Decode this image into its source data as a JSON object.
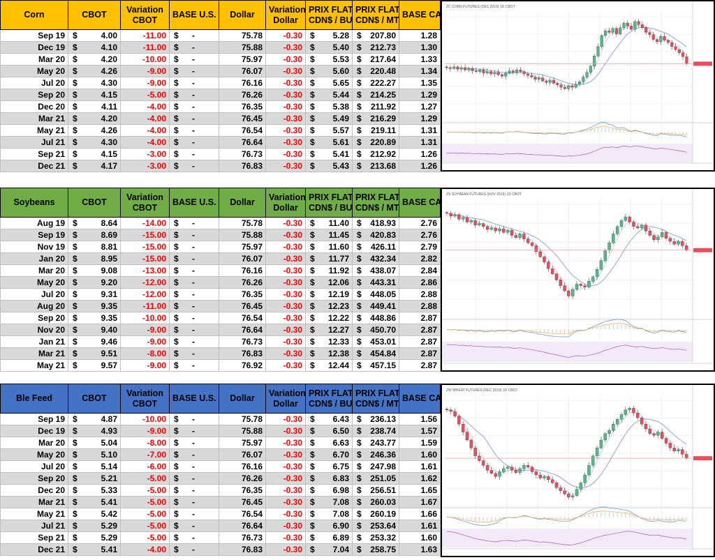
{
  "tables": [
    {
      "id": "corn",
      "header_color": "#ffc000",
      "headers": [
        "Corn",
        "CBOT",
        "Variation\nCBOT",
        "BASE U.S.",
        "Dollar",
        "Variation\nDollar",
        "PRIX FLAT\nCDN$ / BU.",
        "PRIX FLAT\nCDN$ / MT",
        "BASE CAD"
      ],
      "rows": [
        [
          "Sep 19",
          "4.00",
          "-11.00",
          "-",
          "75.78",
          "-0.30",
          "5.28",
          "207.80",
          "1.28"
        ],
        [
          "Dec 19",
          "4.10",
          "-11.00",
          "-",
          "75.88",
          "-0.30",
          "5.40",
          "212.73",
          "1.30"
        ],
        [
          "Mar 20",
          "4.20",
          "-10.00",
          "-",
          "75.97",
          "-0.30",
          "5.53",
          "217.64",
          "1.33"
        ],
        [
          "May 20",
          "4.26",
          "-9.00",
          "-",
          "76.07",
          "-0.30",
          "5.60",
          "220.48",
          "1.34"
        ],
        [
          "Jul 20",
          "4.30",
          "-9.00",
          "-",
          "76.16",
          "-0.30",
          "5.65",
          "222.27",
          "1.35"
        ],
        [
          "Sep 20",
          "4.15",
          "-5.00",
          "-",
          "76.26",
          "-0.30",
          "5.44",
          "214.25",
          "1.29"
        ],
        [
          "Dec 20",
          "4.11",
          "-4.00",
          "-",
          "76.35",
          "-0.30",
          "5.38",
          "211.92",
          "1.27"
        ],
        [
          "Mar 21",
          "4.20",
          "-4.00",
          "-",
          "76.45",
          "-0.30",
          "5.49",
          "216.29",
          "1.29"
        ],
        [
          "May 21",
          "4.26",
          "-4.00",
          "-",
          "76.54",
          "-0.30",
          "5.57",
          "219.11",
          "1.31"
        ],
        [
          "Jul 21",
          "4.30",
          "-4.00",
          "-",
          "76.64",
          "-0.30",
          "5.61",
          "220.89",
          "1.31"
        ],
        [
          "Sep 21",
          "4.15",
          "-3.00",
          "-",
          "76.73",
          "-0.30",
          "5.41",
          "212.92",
          "1.26"
        ],
        [
          "Dec 21",
          "4.17",
          "-3.00",
          "-",
          "76.83",
          "-0.30",
          "5.43",
          "213.68",
          "1.26"
        ]
      ]
    },
    {
      "id": "soybeans",
      "header_color": "#70ad47",
      "headers": [
        "Soybeans",
        "CBOT",
        "Variation\nCBOT",
        "BASE U.S.",
        "Dollar",
        "Variation\nDollar",
        "PRIX FLAT\nCDN$ / BU.",
        "PRIX FLAT\nCDN$ / MT",
        "BASE CAD"
      ],
      "rows": [
        [
          "Aug 19",
          "8.64",
          "-14.00",
          "-",
          "75.78",
          "-0.30",
          "11.40",
          "418.93",
          "2.76"
        ],
        [
          "Sep 19",
          "8.69",
          "-15.00",
          "-",
          "75.88",
          "-0.30",
          "11.45",
          "420.83",
          "2.76"
        ],
        [
          "Nov 19",
          "8.81",
          "-15.00",
          "-",
          "75.97",
          "-0.30",
          "11.60",
          "426.11",
          "2.79"
        ],
        [
          "Jan 20",
          "8.95",
          "-15.00",
          "-",
          "76.07",
          "-0.30",
          "11.77",
          "432.34",
          "2.82"
        ],
        [
          "Mar 20",
          "9.08",
          "-13.00",
          "-",
          "76.16",
          "-0.30",
          "11.92",
          "438.07",
          "2.84"
        ],
        [
          "May 20",
          "9.20",
          "-12.00",
          "-",
          "76.26",
          "-0.30",
          "12.06",
          "443.31",
          "2.86"
        ],
        [
          "Jul 20",
          "9.31",
          "-12.00",
          "-",
          "76.35",
          "-0.30",
          "12.19",
          "448.05",
          "2.88"
        ],
        [
          "Aug 20",
          "9.35",
          "-11.00",
          "-",
          "76.45",
          "-0.30",
          "12.23",
          "449.41",
          "2.88"
        ],
        [
          "Sep 20",
          "9.35",
          "-10.00",
          "-",
          "76.54",
          "-0.30",
          "12.22",
          "448.86",
          "2.87"
        ],
        [
          "Nov 20",
          "9.40",
          "-9.00",
          "-",
          "76.64",
          "-0.30",
          "12.27",
          "450.70",
          "2.87"
        ],
        [
          "Jan 21",
          "9.46",
          "-9.00",
          "-",
          "76.73",
          "-0.30",
          "12.33",
          "453.01",
          "2.87"
        ],
        [
          "Mar 21",
          "9.51",
          "-8.00",
          "-",
          "76.83",
          "-0.30",
          "12.38",
          "454.84",
          "2.87"
        ],
        [
          "May 21",
          "9.57",
          "-9.00",
          "-",
          "76.92",
          "-0.30",
          "12.44",
          "457.15",
          "2.87"
        ]
      ]
    },
    {
      "id": "blefeed",
      "header_color": "#4472c4",
      "headers": [
        "Ble Feed",
        "CBOT",
        "Variation\nCBOT",
        "BASE U.S.",
        "Dollar",
        "Variation\nDollar",
        "PRIX FLAT\nCDN$ / BU.",
        "PRIX FLAT\nCDN$ / MT",
        "BASE CAD"
      ],
      "rows": [
        [
          "Sep 19",
          "4.87",
          "-10.00",
          "-",
          "75.78",
          "-0.30",
          "6.43",
          "236.13",
          "1.56"
        ],
        [
          "Dec 19",
          "4.93",
          "-9.00",
          "-",
          "75.88",
          "-0.30",
          "6.50",
          "238.74",
          "1.57"
        ],
        [
          "Mar 20",
          "5.04",
          "-8.00",
          "-",
          "75.97",
          "-0.30",
          "6.63",
          "243.77",
          "1.59"
        ],
        [
          "May 20",
          "5.10",
          "-7.00",
          "-",
          "76.07",
          "-0.30",
          "6.70",
          "246.36",
          "1.60"
        ],
        [
          "Jul 20",
          "5.14",
          "-6.00",
          "-",
          "76.16",
          "-0.30",
          "6.75",
          "247.98",
          "1.61"
        ],
        [
          "Sep 20",
          "5.21",
          "-5.00",
          "-",
          "76.26",
          "-0.30",
          "6.83",
          "251.05",
          "1.62"
        ],
        [
          "Dec 20",
          "5.33",
          "-5.00",
          "-",
          "76.35",
          "-0.30",
          "6.98",
          "256.51",
          "1.65"
        ],
        [
          "Mar 21",
          "5.41",
          "-5.00",
          "-",
          "76.45",
          "-0.30",
          "7.08",
          "260.03",
          "1.67"
        ],
        [
          "May 21",
          "5.42",
          "-5.00",
          "-",
          "76.54",
          "-0.30",
          "7.08",
          "260.19",
          "1.66"
        ],
        [
          "Jul 21",
          "5.29",
          "-5.00",
          "-",
          "76.64",
          "-0.30",
          "6.90",
          "253.64",
          "1.61"
        ],
        [
          "Sep 21",
          "5.29",
          "-5.00",
          "-",
          "76.73",
          "-0.30",
          "6.89",
          "253.32",
          "1.60"
        ],
        [
          "Dec 21",
          "5.41",
          "-4.00",
          "-",
          "76.83",
          "-0.30",
          "7.04",
          "258.75",
          "1.63"
        ]
      ]
    }
  ],
  "chart_data": [
    {
      "type": "candlestick",
      "title": "ZC CORN FUTURES (DEC 2019) 1D CBOT",
      "up_color": "#53b987",
      "down_color": "#eb4d5c",
      "ylim": [
        340,
        470
      ],
      "closes": [
        405,
        404,
        406,
        403,
        405,
        402,
        404,
        401,
        400,
        402,
        398,
        400,
        397,
        399,
        396,
        394,
        398,
        401,
        399,
        402,
        400,
        397,
        395,
        393,
        390,
        392,
        388,
        386,
        389,
        385,
        383,
        380,
        378,
        382,
        380,
        384,
        387,
        393,
        399,
        407,
        420,
        432,
        446,
        452,
        450,
        455,
        448,
        456,
        462,
        458,
        454,
        464,
        460,
        456,
        450,
        447,
        441,
        438,
        445,
        440,
        437,
        432,
        428,
        424,
        419,
        410
      ]
    },
    {
      "type": "candlestick",
      "title": "ZS SOYBEAN FUTURES (NOV 2019) 1D CBOT",
      "up_color": "#53b987",
      "down_color": "#eb4d5c",
      "ylim": [
        810,
        960
      ],
      "closes": [
        948,
        944,
        946,
        940,
        942,
        936,
        938,
        932,
        934,
        930,
        926,
        928,
        924,
        927,
        922,
        925,
        918,
        915,
        920,
        913,
        908,
        904,
        896,
        889,
        882,
        873,
        866,
        858,
        850,
        843,
        836,
        845,
        852,
        850,
        848,
        856,
        862,
        872,
        884,
        898,
        908,
        920,
        930,
        938,
        943,
        936,
        930,
        928,
        932,
        924,
        918,
        912,
        916,
        922,
        914,
        910,
        906,
        910,
        904,
        898
      ]
    },
    {
      "type": "candlestick",
      "title": "ZW WHEAT FUTURES (DEC 2019) 1D CBOT",
      "up_color": "#53b987",
      "down_color": "#eb4d5c",
      "ylim": [
        440,
        570
      ],
      "closes": [
        558,
        556,
        550,
        540,
        530,
        520,
        510,
        500,
        494,
        488,
        482,
        478,
        474,
        480,
        484,
        486,
        482,
        479,
        484,
        488,
        486,
        480,
        476,
        472,
        474,
        470,
        466,
        460,
        456,
        452,
        448,
        450,
        458,
        466,
        476,
        488,
        500,
        510,
        520,
        528,
        532,
        540,
        546,
        552,
        558,
        560,
        554,
        548,
        540,
        534,
        528,
        526,
        530,
        522,
        516,
        510,
        506,
        508,
        502,
        497
      ]
    }
  ]
}
